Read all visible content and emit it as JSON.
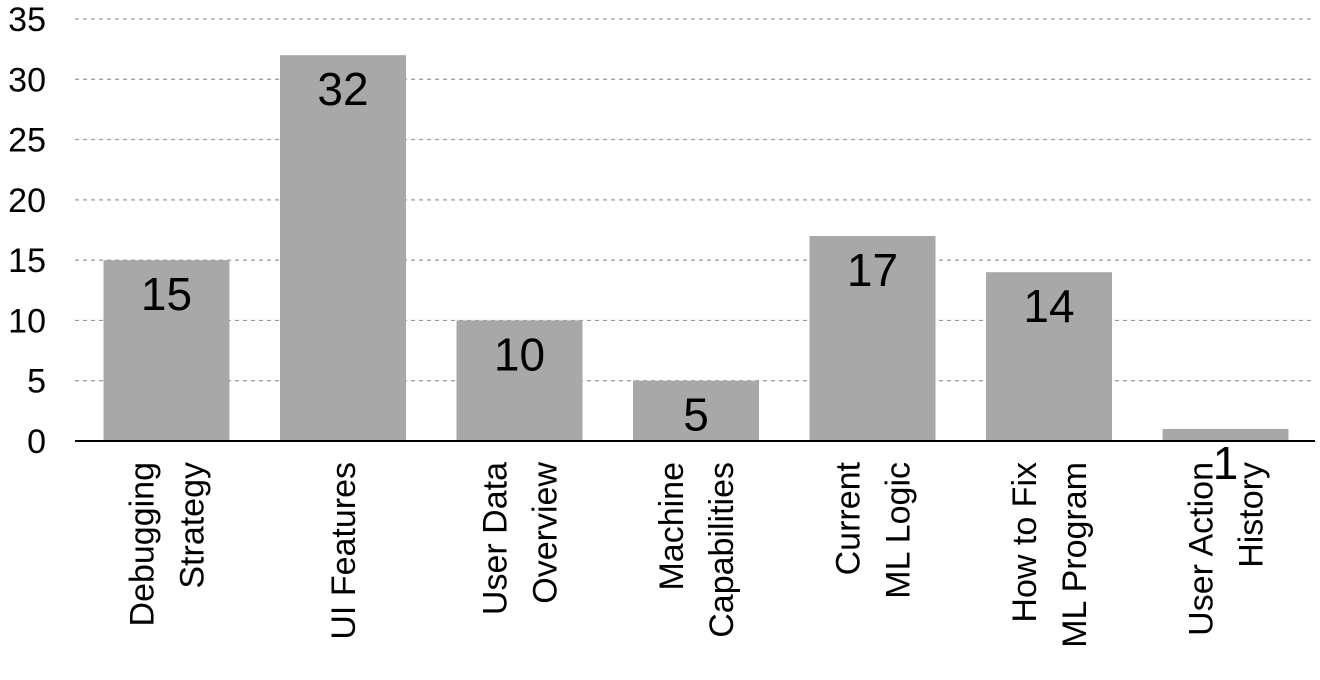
{
  "chart_data": {
    "type": "bar",
    "title": "",
    "xlabel": "",
    "ylabel": "",
    "categories": [
      [
        "Debugging",
        "Strategy"
      ],
      [
        "UI Features"
      ],
      [
        "User Data",
        "Overview"
      ],
      [
        "Machine",
        "Capabilities"
      ],
      [
        "Current",
        "ML Logic"
      ],
      [
        "How to Fix",
        "ML Program"
      ],
      [
        "User Action",
        "History"
      ]
    ],
    "values": [
      15,
      32,
      10,
      5,
      17,
      14,
      1
    ],
    "data_labels": [
      "15",
      "32",
      "10",
      "5",
      "17",
      "14",
      "1"
    ],
    "ylim": [
      0,
      35
    ],
    "yticks": [
      0,
      5,
      10,
      15,
      20,
      25,
      30,
      35
    ],
    "ytick_labels": [
      "0",
      "5",
      "10",
      "15",
      "20",
      "25",
      "30",
      "35"
    ],
    "grid": true,
    "legend": "none",
    "bar_color": "#a8a8a8"
  }
}
